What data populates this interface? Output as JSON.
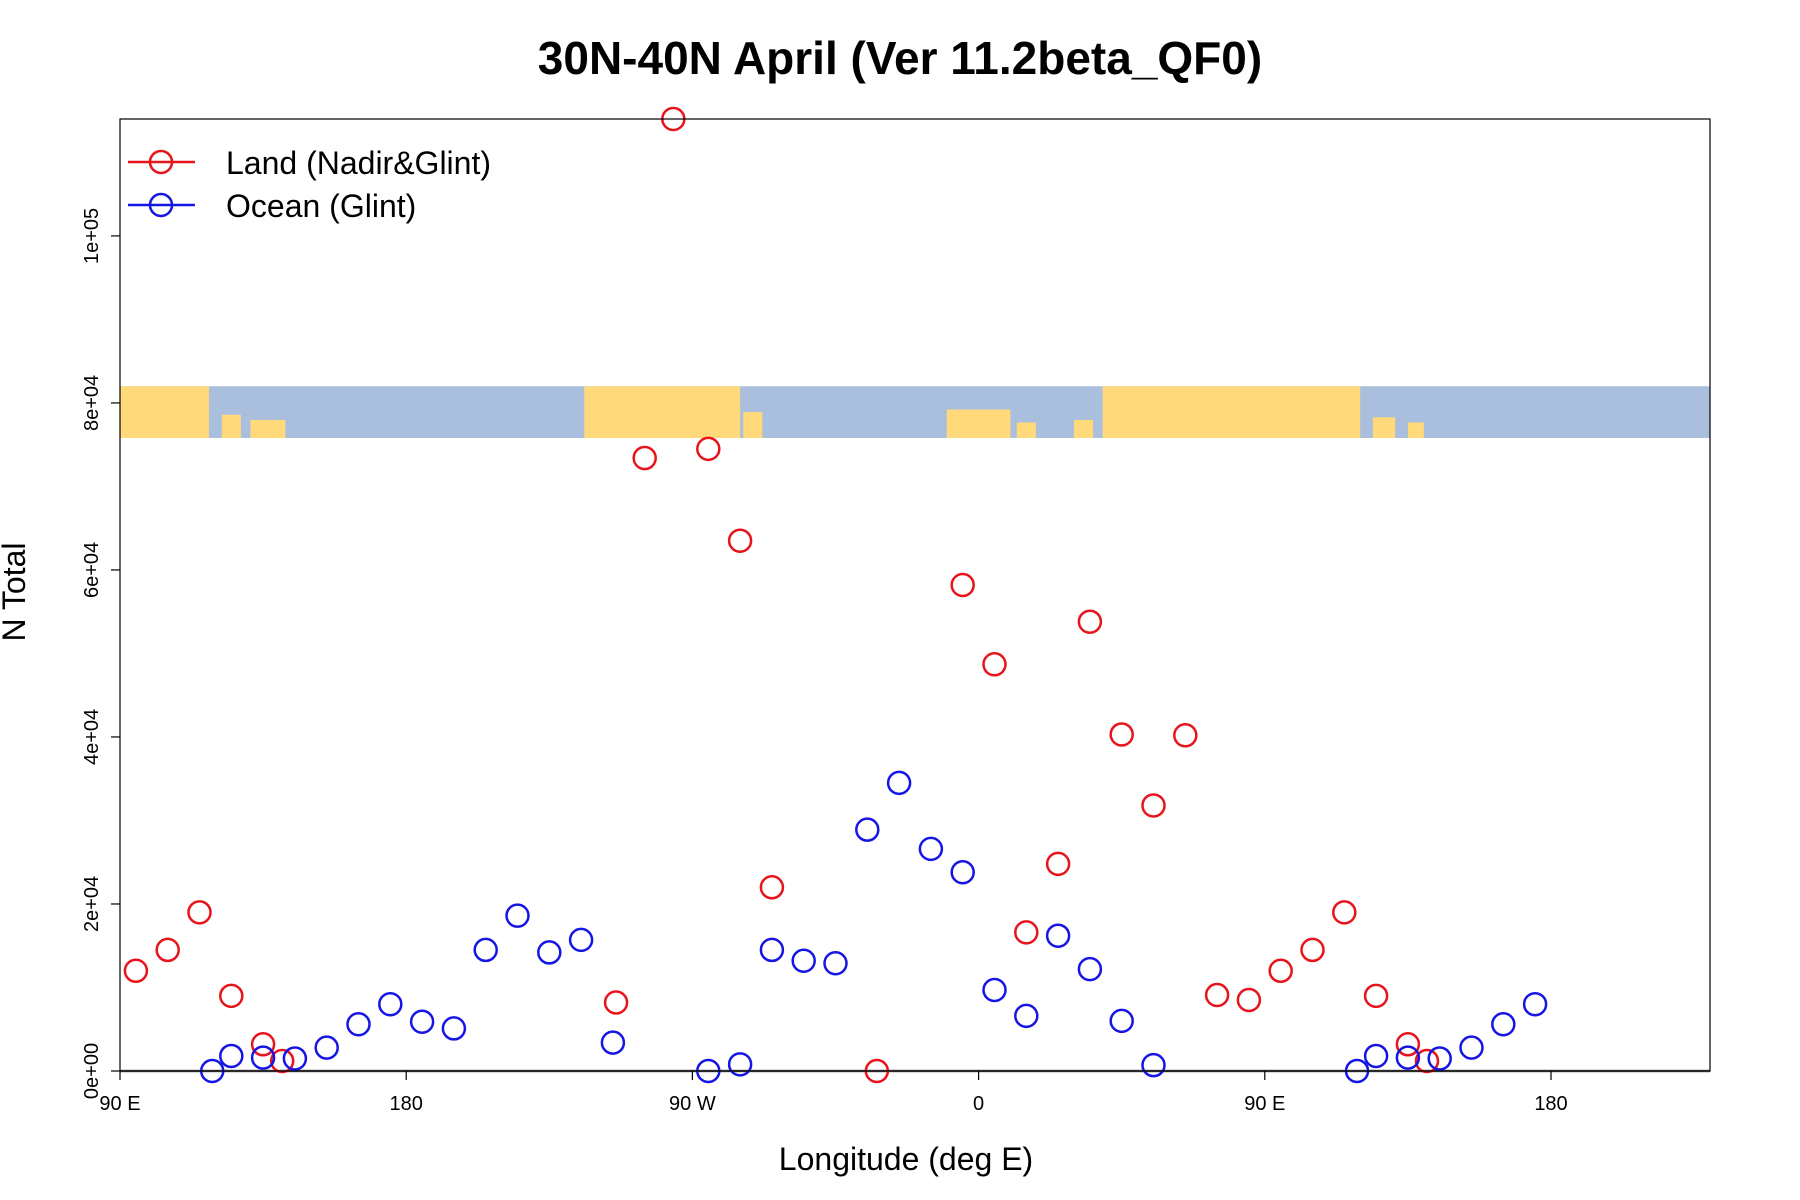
{
  "chart_data": {
    "type": "scatter",
    "title": "30N-40N April (Ver 11.2beta_QF0)",
    "xlabel": "Longitude (deg E)",
    "ylabel": "N Total",
    "xlim": [
      90,
      590
    ],
    "ylim": [
      0,
      114000
    ],
    "x_ticks": [
      {
        "value": 90,
        "label": "90 E"
      },
      {
        "value": 180,
        "label": "180"
      },
      {
        "value": 270,
        "label": "90 W"
      },
      {
        "value": 360,
        "label": "0"
      },
      {
        "value": 450,
        "label": "90 E"
      },
      {
        "value": 540,
        "label": "180"
      }
    ],
    "y_ticks": [
      {
        "value": 0,
        "label": "0e+00"
      },
      {
        "value": 20000,
        "label": "2e+04"
      },
      {
        "value": 40000,
        "label": "4e+04"
      },
      {
        "value": 60000,
        "label": "6e+04"
      },
      {
        "value": 80000,
        "label": "8e+04"
      },
      {
        "value": 100000,
        "label": "1e+05"
      }
    ],
    "map_strip": {
      "y_range": [
        75800,
        82000
      ],
      "land_color": "#FFD97A",
      "ocean_color": "#A9BFDD"
    },
    "grid": false,
    "legend_position": "top-left",
    "series": [
      {
        "name": "Land (Nadir&Glint)",
        "color": "#E8141B",
        "points": [
          {
            "x": 95,
            "y": 12000
          },
          {
            "x": 105,
            "y": 14500
          },
          {
            "x": 115,
            "y": 19000
          },
          {
            "x": 125,
            "y": 9000
          },
          {
            "x": 135,
            "y": 3200
          },
          {
            "x": 141,
            "y": 1200
          },
          {
            "x": 246,
            "y": 8200
          },
          {
            "x": 255,
            "y": 73400
          },
          {
            "x": 264,
            "y": 114000
          },
          {
            "x": 275,
            "y": 74500
          },
          {
            "x": 285,
            "y": 63500
          },
          {
            "x": 295,
            "y": 22000
          },
          {
            "x": 328,
            "y": 0
          },
          {
            "x": 355,
            "y": 58200
          },
          {
            "x": 365,
            "y": 48700
          },
          {
            "x": 375,
            "y": 16600
          },
          {
            "x": 385,
            "y": 24800
          },
          {
            "x": 395,
            "y": 53800
          },
          {
            "x": 405,
            "y": 40300
          },
          {
            "x": 415,
            "y": 31800
          },
          {
            "x": 425,
            "y": 40200
          },
          {
            "x": 435,
            "y": 9100
          },
          {
            "x": 445,
            "y": 8500
          },
          {
            "x": 455,
            "y": 12000
          },
          {
            "x": 465,
            "y": 14500
          },
          {
            "x": 475,
            "y": 19000
          },
          {
            "x": 485,
            "y": 9000
          },
          {
            "x": 495,
            "y": 3200
          },
          {
            "x": 501,
            "y": 1200
          }
        ]
      },
      {
        "name": "Ocean (Glint)",
        "color": "#1515E6",
        "points": [
          {
            "x": 119,
            "y": 0
          },
          {
            "x": 125,
            "y": 1800
          },
          {
            "x": 135,
            "y": 1600
          },
          {
            "x": 145,
            "y": 1500
          },
          {
            "x": 155,
            "y": 2800
          },
          {
            "x": 165,
            "y": 5600
          },
          {
            "x": 175,
            "y": 8000
          },
          {
            "x": 185,
            "y": 5900
          },
          {
            "x": 195,
            "y": 5100
          },
          {
            "x": 205,
            "y": 14500
          },
          {
            "x": 215,
            "y": 18600
          },
          {
            "x": 225,
            "y": 14200
          },
          {
            "x": 235,
            "y": 15700
          },
          {
            "x": 245,
            "y": 3400
          },
          {
            "x": 275,
            "y": 0
          },
          {
            "x": 285,
            "y": 800
          },
          {
            "x": 295,
            "y": 14500
          },
          {
            "x": 305,
            "y": 13200
          },
          {
            "x": 315,
            "y": 12900
          },
          {
            "x": 325,
            "y": 28900
          },
          {
            "x": 335,
            "y": 34500
          },
          {
            "x": 345,
            "y": 26600
          },
          {
            "x": 355,
            "y": 23800
          },
          {
            "x": 365,
            "y": 9700
          },
          {
            "x": 375,
            "y": 6600
          },
          {
            "x": 385,
            "y": 16200
          },
          {
            "x": 395,
            "y": 12200
          },
          {
            "x": 405,
            "y": 6000
          },
          {
            "x": 415,
            "y": 700
          },
          {
            "x": 479,
            "y": 0
          },
          {
            "x": 485,
            "y": 1800
          },
          {
            "x": 495,
            "y": 1600
          },
          {
            "x": 505,
            "y": 1500
          },
          {
            "x": 515,
            "y": 2800
          },
          {
            "x": 525,
            "y": 5600
          },
          {
            "x": 535,
            "y": 8000
          }
        ]
      }
    ]
  }
}
